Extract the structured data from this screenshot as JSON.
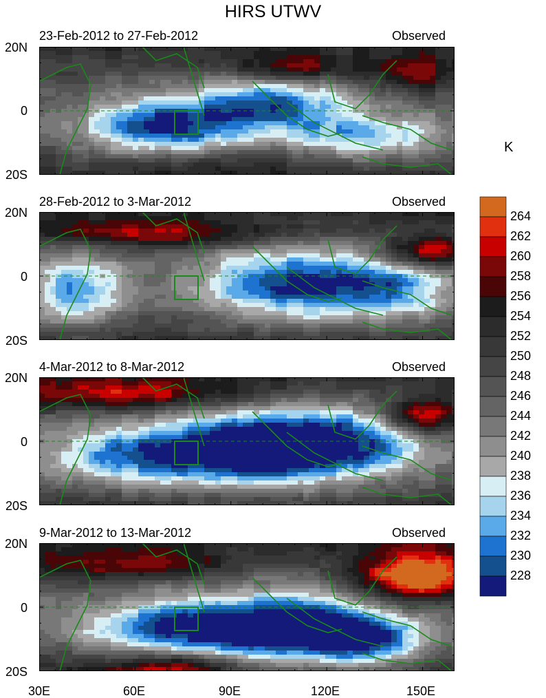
{
  "title": "HIRS UTWV",
  "units": "K",
  "panels": [
    {
      "date_range": "23-Feb-2012 to 27-Feb-2012",
      "label": "Observed"
    },
    {
      "date_range": "28-Feb-2012 to 3-Mar-2012",
      "label": "Observed"
    },
    {
      "date_range": "4-Mar-2012 to 8-Mar-2012",
      "label": "Observed"
    },
    {
      "date_range": "9-Mar-2012 to 13-Mar-2012",
      "label": "Observed"
    }
  ],
  "lat_labels": {
    "north": "20N",
    "equator": "0",
    "south": "20S"
  },
  "lon_labels": [
    "30E",
    "60E",
    "90E",
    "120E",
    "150E"
  ],
  "colorbar": {
    "levels": [
      "264",
      "262",
      "260",
      "258",
      "256",
      "254",
      "252",
      "250",
      "248",
      "246",
      "244",
      "242",
      "240",
      "238",
      "236",
      "234",
      "232",
      "230",
      "228"
    ],
    "colors": [
      "#d2691e",
      "#e03010",
      "#c80000",
      "#7a0808",
      "#4a0606",
      "#1c1c1c",
      "#2c2c2c",
      "#383838",
      "#454545",
      "#545454",
      "#646464",
      "#787878",
      "#8e8e8e",
      "#a8a8a8",
      "#d6eef4",
      "#a6d4ec",
      "#5aaaea",
      "#1e72d0",
      "#15508e",
      "#141a7a"
    ]
  },
  "colors": {
    "coastline": "#1a8a1a",
    "box": "#1a8a1a"
  }
}
